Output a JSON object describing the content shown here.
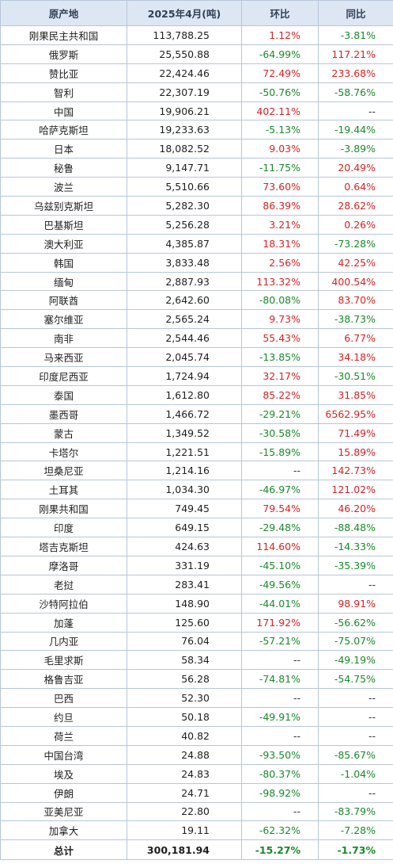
{
  "headers": [
    "原产地",
    "2025年4月(吨)",
    "环比",
    "同比"
  ],
  "rows": [
    {
      "origin": "刚果民主共和国",
      "volume": "113,788.25",
      "mom": "1.12%",
      "yoy": "-3.81%"
    },
    {
      "origin": "俄罗斯",
      "volume": "25,550.88",
      "mom": "-64.99%",
      "yoy": "117.21%"
    },
    {
      "origin": "赞比亚",
      "volume": "22,424.46",
      "mom": "72.49%",
      "yoy": "233.68%"
    },
    {
      "origin": "智利",
      "volume": "22,307.19",
      "mom": "-50.76%",
      "yoy": "-58.76%"
    },
    {
      "origin": "中国",
      "volume": "19,906.21",
      "mom": "402.11%",
      "yoy": "--"
    },
    {
      "origin": "哈萨克斯坦",
      "volume": "19,233.63",
      "mom": "-5.13%",
      "yoy": "-19.44%"
    },
    {
      "origin": "日本",
      "volume": "18,082.52",
      "mom": "9.03%",
      "yoy": "-3.89%"
    },
    {
      "origin": "秘鲁",
      "volume": "9,147.71",
      "mom": "-11.75%",
      "yoy": "20.49%"
    },
    {
      "origin": "波兰",
      "volume": "5,510.66",
      "mom": "73.60%",
      "yoy": "0.64%"
    },
    {
      "origin": "乌兹别克斯坦",
      "volume": "5,282.30",
      "mom": "86.39%",
      "yoy": "28.62%"
    },
    {
      "origin": "巴基斯坦",
      "volume": "5,256.28",
      "mom": "3.21%",
      "yoy": "0.26%"
    },
    {
      "origin": "澳大利亚",
      "volume": "4,385.87",
      "mom": "18.31%",
      "yoy": "-73.28%"
    },
    {
      "origin": "韩国",
      "volume": "3,833.48",
      "mom": "2.56%",
      "yoy": "42.25%"
    },
    {
      "origin": "缅甸",
      "volume": "2,887.93",
      "mom": "113.32%",
      "yoy": "400.54%"
    },
    {
      "origin": "阿联酋",
      "volume": "2,642.60",
      "mom": "-80.08%",
      "yoy": "83.70%"
    },
    {
      "origin": "塞尔维亚",
      "volume": "2,565.24",
      "mom": "9.73%",
      "yoy": "-38.73%"
    },
    {
      "origin": "南非",
      "volume": "2,544.46",
      "mom": "55.43%",
      "yoy": "6.77%"
    },
    {
      "origin": "马来西亚",
      "volume": "2,045.74",
      "mom": "-13.85%",
      "yoy": "34.18%"
    },
    {
      "origin": "印度尼西亚",
      "volume": "1,724.94",
      "mom": "32.17%",
      "yoy": "-30.51%"
    },
    {
      "origin": "泰国",
      "volume": "1,612.80",
      "mom": "85.22%",
      "yoy": "31.85%"
    },
    {
      "origin": "墨西哥",
      "volume": "1,466.72",
      "mom": "-29.21%",
      "yoy": "6562.95%"
    },
    {
      "origin": "蒙古",
      "volume": "1,349.52",
      "mom": "-30.58%",
      "yoy": "71.49%"
    },
    {
      "origin": "卡塔尔",
      "volume": "1,221.51",
      "mom": "-15.89%",
      "yoy": "15.89%"
    },
    {
      "origin": "坦桑尼亚",
      "volume": "1,214.16",
      "mom": "--",
      "yoy": "142.73%"
    },
    {
      "origin": "土耳其",
      "volume": "1,034.30",
      "mom": "-46.97%",
      "yoy": "121.02%"
    },
    {
      "origin": "刚果共和国",
      "volume": "749.45",
      "mom": "79.54%",
      "yoy": "46.20%"
    },
    {
      "origin": "印度",
      "volume": "649.15",
      "mom": "-29.48%",
      "yoy": "-88.48%"
    },
    {
      "origin": "塔吉克斯坦",
      "volume": "424.63",
      "mom": "114.60%",
      "yoy": "-14.33%"
    },
    {
      "origin": "摩洛哥",
      "volume": "331.19",
      "mom": "-45.10%",
      "yoy": "-35.39%"
    },
    {
      "origin": "老挝",
      "volume": "283.41",
      "mom": "-49.56%",
      "yoy": "--"
    },
    {
      "origin": "沙特阿拉伯",
      "volume": "148.90",
      "mom": "-44.01%",
      "yoy": "98.91%"
    },
    {
      "origin": "加蓬",
      "volume": "125.60",
      "mom": "171.92%",
      "yoy": "-56.62%"
    },
    {
      "origin": "几内亚",
      "volume": "76.04",
      "mom": "-57.21%",
      "yoy": "-75.07%"
    },
    {
      "origin": "毛里求斯",
      "volume": "58.34",
      "mom": "--",
      "yoy": "-49.19%"
    },
    {
      "origin": "格鲁吉亚",
      "volume": "56.28",
      "mom": "-74.81%",
      "yoy": "-54.75%"
    },
    {
      "origin": "巴西",
      "volume": "52.30",
      "mom": "--",
      "yoy": "--"
    },
    {
      "origin": "约旦",
      "volume": "50.18",
      "mom": "-49.91%",
      "yoy": "--"
    },
    {
      "origin": "荷兰",
      "volume": "40.82",
      "mom": "--",
      "yoy": "--"
    },
    {
      "origin": "中国台湾",
      "volume": "24.88",
      "mom": "-93.50%",
      "yoy": "-85.67%"
    },
    {
      "origin": "埃及",
      "volume": "24.83",
      "mom": "-80.37%",
      "yoy": "-1.04%"
    },
    {
      "origin": "伊朗",
      "volume": "24.71",
      "mom": "-98.92%",
      "yoy": "--"
    },
    {
      "origin": "亚美尼亚",
      "volume": "22.80",
      "mom": "--",
      "yoy": "-83.79%"
    },
    {
      "origin": "加拿大",
      "volume": "19.11",
      "mom": "-62.32%",
      "yoy": "-7.28%"
    }
  ],
  "total": {
    "origin": "总计",
    "volume": "300,181.94",
    "mom": "-15.27%",
    "yoy": "-1.73%"
  },
  "colors": {
    "positive": "#e02020",
    "negative": "#1a8a2a",
    "header_bg": "#dde6f3",
    "border": "#b7c6db"
  }
}
